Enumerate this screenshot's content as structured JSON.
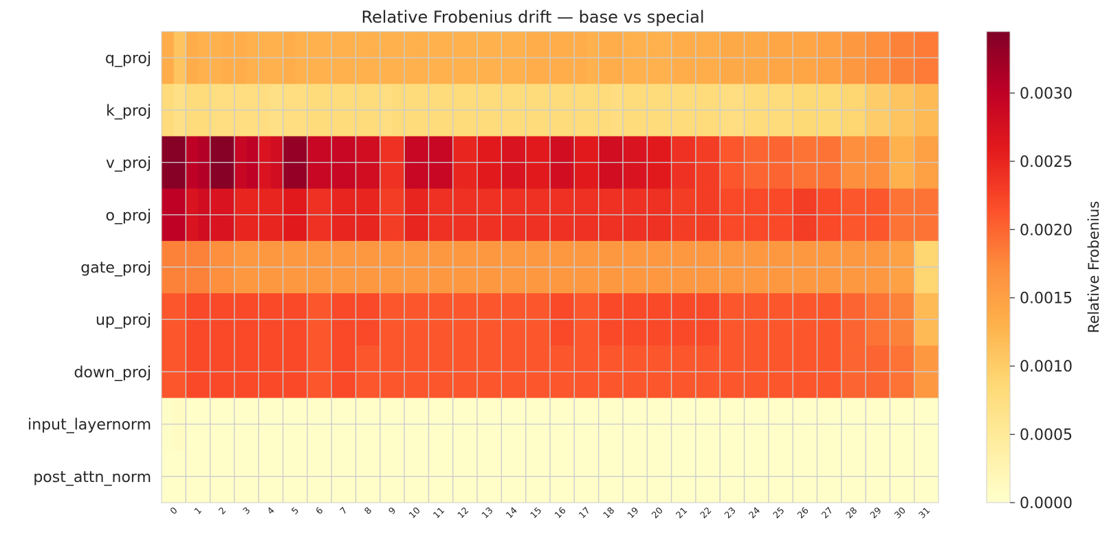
{
  "chart_data": {
    "type": "heatmap",
    "title": "Relative Frobenius drift — base vs special",
    "xlabel": "",
    "ylabel": "",
    "x_ticks": [
      "0",
      "1",
      "2",
      "3",
      "4",
      "5",
      "6",
      "7",
      "8",
      "9",
      "10",
      "11",
      "12",
      "13",
      "14",
      "15",
      "16",
      "17",
      "18",
      "19",
      "20",
      "21",
      "22",
      "23",
      "24",
      "25",
      "26",
      "27",
      "28",
      "29",
      "30",
      "31"
    ],
    "rows": [
      "q_proj",
      "k_proj",
      "v_proj",
      "o_proj",
      "gate_proj",
      "up_proj",
      "down_proj",
      "input_layernorm",
      "post_attn_norm"
    ],
    "colorbar": {
      "label": "Relative Frobenius",
      "min": 0.0,
      "max": 0.00345,
      "ticks": [
        0.0,
        0.0005,
        0.001,
        0.0015,
        0.002,
        0.0025,
        0.003
      ],
      "tick_labels": [
        "0.0000",
        "0.0005",
        "0.0010",
        "0.0015",
        "0.0020",
        "0.0025",
        "0.0030"
      ],
      "colormap": "YlOrRd"
    },
    "cols_per_layer": 2,
    "values": [
      [
        0.00135,
        0.0011,
        0.00135,
        0.0013,
        0.0013,
        0.00135,
        0.00135,
        0.0013,
        0.0013,
        0.0013,
        0.00135,
        0.0013,
        0.0013,
        0.0013,
        0.0013,
        0.0013,
        0.0013,
        0.0013,
        0.0013,
        0.0013,
        0.0013,
        0.0013,
        0.0013,
        0.0013,
        0.0013,
        0.0013,
        0.0013,
        0.0013,
        0.0013,
        0.0013,
        0.00135,
        0.00135,
        0.00135,
        0.00135,
        0.00135,
        0.0013,
        0.00135,
        0.00135,
        0.0013,
        0.0013,
        0.0013,
        0.0013,
        0.00135,
        0.00135,
        0.00135,
        0.00135,
        0.0014,
        0.0014,
        0.0014,
        0.0014,
        0.00145,
        0.00145,
        0.00145,
        0.00145,
        0.0015,
        0.0015,
        0.0016,
        0.0016,
        0.0017,
        0.0017,
        0.0018,
        0.0018,
        0.00185,
        0.00185
      ],
      [
        0.0008,
        0.0007,
        0.0008,
        0.0008,
        0.00075,
        0.00075,
        0.00075,
        0.00075,
        0.00075,
        0.0007,
        0.00075,
        0.00075,
        0.0008,
        0.0008,
        0.0008,
        0.0008,
        0.0008,
        0.0008,
        0.00075,
        0.0008,
        0.0008,
        0.0008,
        0.0008,
        0.0008,
        0.0008,
        0.0008,
        0.0008,
        0.0008,
        0.0008,
        0.0008,
        0.0008,
        0.0008,
        0.0008,
        0.0008,
        0.0008,
        0.0008,
        0.0008,
        0.00075,
        0.0008,
        0.0008,
        0.0008,
        0.0008,
        0.0008,
        0.0008,
        0.0008,
        0.0008,
        0.00075,
        0.00075,
        0.0008,
        0.0008,
        0.0008,
        0.0008,
        0.00085,
        0.00085,
        0.00085,
        0.00085,
        0.0009,
        0.0009,
        0.001,
        0.001,
        0.0011,
        0.0011,
        0.0012,
        0.0012
      ],
      [
        0.0034,
        0.0034,
        0.003,
        0.0031,
        0.0034,
        0.0034,
        0.0029,
        0.003,
        0.0027,
        0.0028,
        0.0033,
        0.0033,
        0.0029,
        0.0029,
        0.0029,
        0.0029,
        0.0028,
        0.0028,
        0.0024,
        0.0024,
        0.0029,
        0.0029,
        0.0029,
        0.0029,
        0.0025,
        0.0025,
        0.0026,
        0.0026,
        0.0027,
        0.0027,
        0.0026,
        0.0026,
        0.0028,
        0.0028,
        0.0026,
        0.0026,
        0.0028,
        0.0028,
        0.0027,
        0.0027,
        0.0026,
        0.0026,
        0.0024,
        0.0024,
        0.0023,
        0.0023,
        0.0021,
        0.0021,
        0.002,
        0.002,
        0.002,
        0.002,
        0.0019,
        0.0019,
        0.0019,
        0.0019,
        0.0017,
        0.0017,
        0.0017,
        0.0017,
        0.0013,
        0.0013,
        0.0015,
        0.0015
      ],
      [
        0.003,
        0.003,
        0.0027,
        0.0028,
        0.0027,
        0.0027,
        0.0025,
        0.0025,
        0.0025,
        0.0025,
        0.0026,
        0.0026,
        0.0024,
        0.0024,
        0.0025,
        0.0025,
        0.0025,
        0.0025,
        0.0023,
        0.0023,
        0.0025,
        0.0025,
        0.0024,
        0.0024,
        0.0024,
        0.0024,
        0.0024,
        0.0024,
        0.0024,
        0.0024,
        0.0024,
        0.0024,
        0.0024,
        0.0024,
        0.0024,
        0.0024,
        0.0024,
        0.0024,
        0.0024,
        0.0024,
        0.0024,
        0.0024,
        0.0023,
        0.0023,
        0.0023,
        0.0023,
        0.0022,
        0.0022,
        0.0022,
        0.0022,
        0.0022,
        0.0022,
        0.0023,
        0.0023,
        0.0022,
        0.0022,
        0.0021,
        0.0021,
        0.0021,
        0.0021,
        0.0019,
        0.0019,
        0.0019,
        0.0019
      ],
      [
        0.0018,
        0.0018,
        0.0018,
        0.0018,
        0.0017,
        0.0017,
        0.0016,
        0.0016,
        0.0016,
        0.0016,
        0.0016,
        0.0016,
        0.0016,
        0.0016,
        0.0016,
        0.0016,
        0.0016,
        0.0016,
        0.0016,
        0.0016,
        0.0016,
        0.0016,
        0.0016,
        0.0016,
        0.0016,
        0.0016,
        0.0016,
        0.0016,
        0.0016,
        0.0016,
        0.0016,
        0.0016,
        0.0016,
        0.0016,
        0.0016,
        0.0016,
        0.0016,
        0.0016,
        0.0016,
        0.0016,
        0.0016,
        0.0016,
        0.0016,
        0.0016,
        0.0016,
        0.0016,
        0.0016,
        0.0016,
        0.0016,
        0.0016,
        0.0016,
        0.0016,
        0.0016,
        0.0016,
        0.0016,
        0.0016,
        0.0016,
        0.0016,
        0.0016,
        0.0016,
        0.0015,
        0.0015,
        0.0009,
        0.0009
      ],
      [
        0.0021,
        0.0021,
        0.0022,
        0.0022,
        0.0022,
        0.0022,
        0.0022,
        0.0022,
        0.0022,
        0.0022,
        0.0022,
        0.0022,
        0.0021,
        0.0021,
        0.0022,
        0.0022,
        0.0022,
        0.0022,
        0.0021,
        0.0021,
        0.0021,
        0.0021,
        0.0021,
        0.0021,
        0.0021,
        0.0021,
        0.0021,
        0.0021,
        0.0021,
        0.0021,
        0.0021,
        0.0021,
        0.0022,
        0.0022,
        0.0021,
        0.0021,
        0.0022,
        0.0022,
        0.0022,
        0.0022,
        0.0022,
        0.0022,
        0.0022,
        0.0022,
        0.0022,
        0.0022,
        0.0021,
        0.0021,
        0.0021,
        0.0021,
        0.0021,
        0.0021,
        0.0021,
        0.0021,
        0.0021,
        0.0021,
        0.002,
        0.002,
        0.0019,
        0.0019,
        0.0018,
        0.0018,
        0.0012,
        0.0012
      ],
      [
        0.0021,
        0.0021,
        0.0022,
        0.0022,
        0.0022,
        0.0022,
        0.0022,
        0.0022,
        0.0022,
        0.0022,
        0.0022,
        0.0022,
        0.0021,
        0.0021,
        0.0022,
        0.0022,
        0.0021,
        0.0021,
        0.0021,
        0.0021,
        0.0021,
        0.0021,
        0.0021,
        0.0021,
        0.0021,
        0.0021,
        0.0021,
        0.0021,
        0.0021,
        0.0021,
        0.0021,
        0.0021,
        0.0021,
        0.0021,
        0.0021,
        0.0021,
        0.0021,
        0.0021,
        0.0021,
        0.0021,
        0.0021,
        0.0021,
        0.0021,
        0.0021,
        0.0021,
        0.0021,
        0.0021,
        0.0021,
        0.0021,
        0.0021,
        0.0021,
        0.0021,
        0.0021,
        0.0021,
        0.0021,
        0.0021,
        0.002,
        0.002,
        0.002,
        0.002,
        0.0019,
        0.0019,
        0.0016,
        0.0016
      ],
      [
        5e-05,
        0.0001,
        3e-05,
        3e-05,
        3e-05,
        3e-05,
        3e-05,
        3e-05,
        3e-05,
        3e-05,
        3e-05,
        3e-05,
        3e-05,
        3e-05,
        3e-05,
        3e-05,
        3e-05,
        3e-05,
        3e-05,
        3e-05,
        3e-05,
        3e-05,
        3e-05,
        3e-05,
        3e-05,
        3e-05,
        3e-05,
        3e-05,
        3e-05,
        3e-05,
        3e-05,
        3e-05,
        3e-05,
        3e-05,
        3e-05,
        3e-05,
        3e-05,
        3e-05,
        3e-05,
        3e-05,
        3e-05,
        3e-05,
        3e-05,
        3e-05,
        3e-05,
        3e-05,
        3e-05,
        3e-05,
        3e-05,
        3e-05,
        3e-05,
        3e-05,
        3e-05,
        3e-05,
        3e-05,
        3e-05,
        3e-05,
        3e-05,
        3e-05,
        3e-05,
        3e-05,
        3e-05,
        3e-05,
        3e-05
      ],
      [
        3e-05,
        3e-05,
        3e-05,
        3e-05,
        3e-05,
        3e-05,
        3e-05,
        3e-05,
        3e-05,
        3e-05,
        3e-05,
        3e-05,
        3e-05,
        3e-05,
        3e-05,
        3e-05,
        3e-05,
        3e-05,
        3e-05,
        3e-05,
        3e-05,
        3e-05,
        3e-05,
        3e-05,
        3e-05,
        3e-05,
        3e-05,
        3e-05,
        3e-05,
        3e-05,
        3e-05,
        3e-05,
        3e-05,
        3e-05,
        3e-05,
        3e-05,
        3e-05,
        3e-05,
        3e-05,
        3e-05,
        3e-05,
        3e-05,
        3e-05,
        3e-05,
        3e-05,
        3e-05,
        3e-05,
        3e-05,
        3e-05,
        3e-05,
        3e-05,
        3e-05,
        3e-05,
        3e-05,
        3e-05,
        3e-05,
        3e-05,
        3e-05,
        3e-05,
        3e-05,
        3e-05,
        3e-05,
        3e-05,
        3e-05
      ]
    ]
  }
}
